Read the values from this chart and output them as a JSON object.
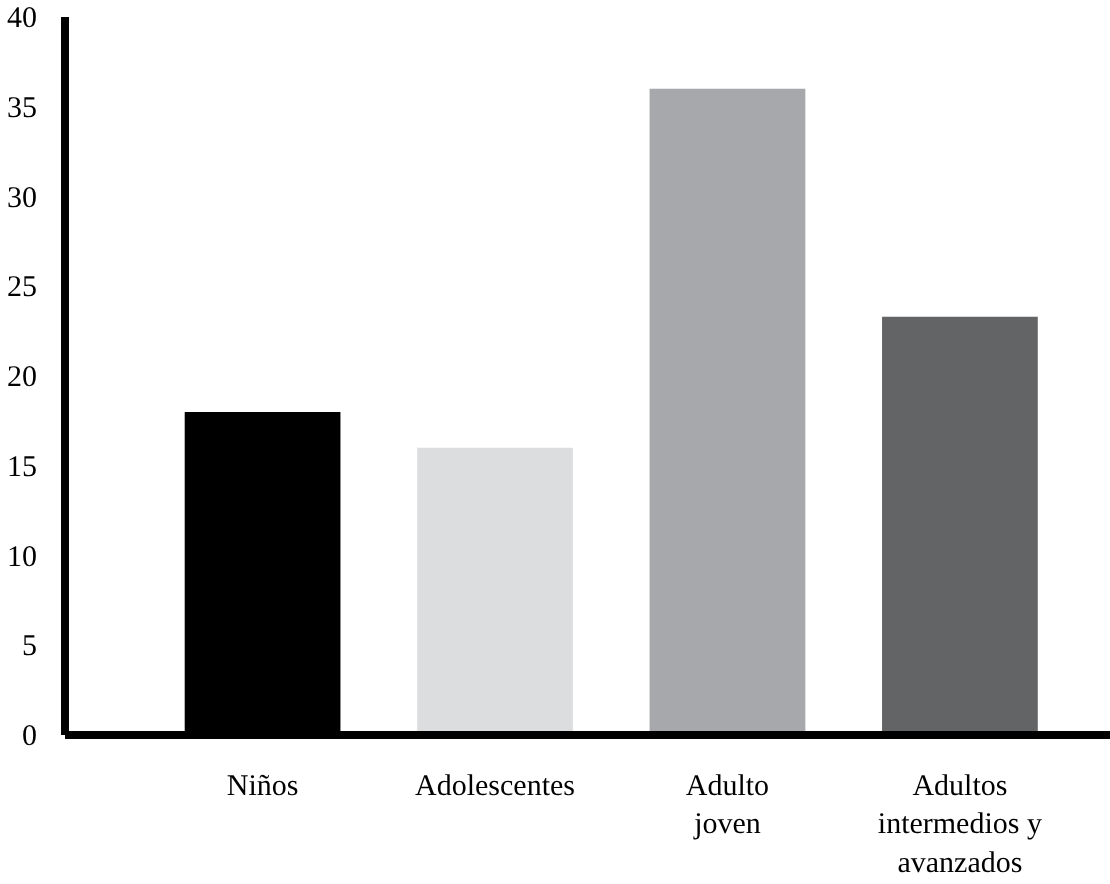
{
  "chart_data": {
    "type": "bar",
    "categories": [
      "Niños",
      "Adolescentes",
      "Adulto\njoven",
      "Adultos\nintermedios y\navanzados"
    ],
    "values": [
      18,
      16,
      36,
      23.3
    ],
    "colors": [
      "#000000",
      "#dcdddf",
      "#a7a8ab",
      "#636466"
    ],
    "ylim": [
      0,
      40
    ],
    "yticks": [
      0,
      5,
      10,
      15,
      20,
      25,
      30,
      35,
      40
    ],
    "grid": false
  }
}
